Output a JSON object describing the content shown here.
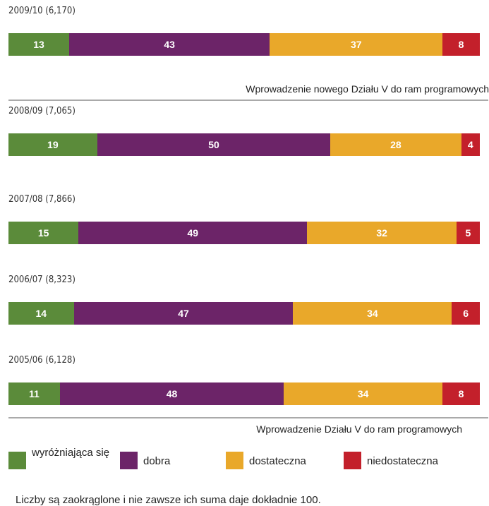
{
  "chart_data": {
    "type": "bar",
    "stacked": true,
    "orientation": "horizontal",
    "categories": [
      "2009/10 (6,170)",
      "2008/09 (7,065)",
      "2007/08 (7,866)",
      "2006/07 (8,323)",
      "2005/06 (6,128)"
    ],
    "series": [
      {
        "name": "wyróżniająca się",
        "color": "#5b8b3a",
        "values": [
          13,
          19,
          15,
          14,
          11
        ]
      },
      {
        "name": "dobra",
        "color": "#6c2468",
        "values": [
          43,
          50,
          49,
          47,
          48
        ]
      },
      {
        "name": "dostateczna",
        "color": "#e9a82a",
        "values": [
          37,
          28,
          32,
          34,
          34
        ]
      },
      {
        "name": "niedostateczna",
        "color": "#c3202b",
        "values": [
          8,
          4,
          5,
          6,
          8
        ]
      }
    ],
    "annotations": [
      "Wprowadzenie nowego Działu V do ram programowych",
      "Wprowadzenie Działu V do ram programowych"
    ],
    "footnote": "Liczby są zaokrąglone i nie zawsze ich suma daje dokładnie 100."
  }
}
